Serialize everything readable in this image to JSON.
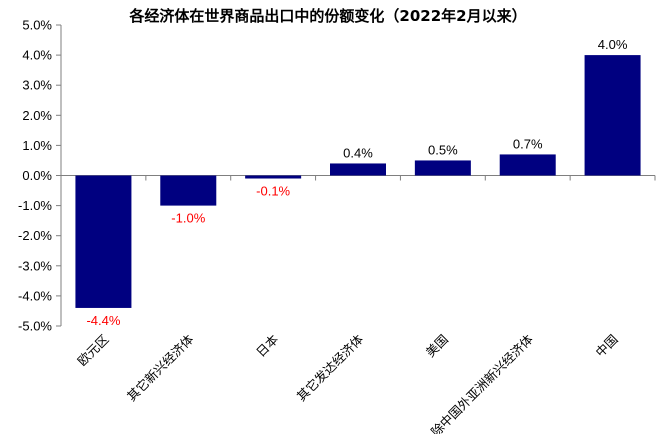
{
  "chart_data": {
    "type": "bar",
    "title": "各经济体在世界商品出口中的份额变化（2022年2月以来）",
    "xlabel": "",
    "ylabel": "",
    "categories": [
      "欧元区",
      "其它新兴经济体",
      "日本",
      "其它发达经济体",
      "美国",
      "除中国外亚洲新兴经济体",
      "中国"
    ],
    "values": [
      -4.4,
      -1.0,
      -0.1,
      0.4,
      0.5,
      0.7,
      4.0
    ],
    "data_labels": [
      "-4.4%",
      "-1.0%",
      "-0.1%",
      "0.4%",
      "0.5%",
      "0.7%",
      "4.0%"
    ],
    "ylim": [
      -5.0,
      5.0
    ],
    "yticks": [
      5.0,
      4.0,
      3.0,
      2.0,
      1.0,
      0.0,
      -1.0,
      -2.0,
      -3.0,
      -4.0,
      -5.0
    ],
    "ytick_labels": [
      "5.0%",
      "4.0%",
      "3.0%",
      "2.0%",
      "1.0%",
      "0.0%",
      "-1.0%",
      "-2.0%",
      "-3.0%",
      "-4.0%",
      "-5.0%"
    ],
    "grid": false,
    "legend": "none",
    "colors": {
      "bar": "#000080",
      "positive_label": "#000000",
      "negative_label": "#ff0000",
      "axis": "#7f7f7f"
    }
  }
}
